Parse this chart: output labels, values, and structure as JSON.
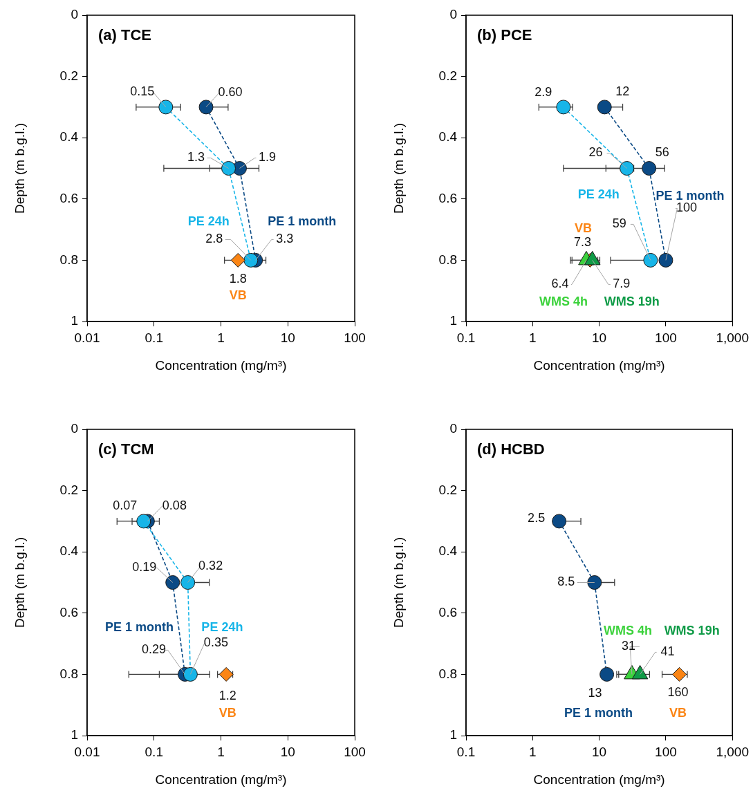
{
  "chart_data": [
    {
      "type": "scatter",
      "orientation": "horizontal",
      "title": "(a) TCE",
      "xlabel": "Concentration (mg/m³)",
      "ylabel": "Depth (m b.g.l.)",
      "log": "x",
      "grid": false,
      "xlim": [
        0.01,
        100
      ],
      "xticks": [
        0.01,
        0.1,
        1,
        10,
        100
      ],
      "ylim": [
        1,
        0
      ],
      "yticks": [
        0,
        0.2,
        0.4,
        0.6,
        0.8,
        1
      ],
      "series": [
        {
          "name": "PE 1 month",
          "type": "line",
          "marker": "circle",
          "line_style": "dashed",
          "color": "#0b4a85",
          "x": [
            0.3,
            0.5,
            0.8
          ],
          "values": [
            0.6,
            1.9,
            3.3
          ],
          "errors": [
            [
              0.6,
              1.28
            ],
            [
              0.68,
              3.7
            ],
            [
              3.3,
              4.7
            ]
          ],
          "value_labels": [
            "0.60",
            "1.9",
            "3.3"
          ]
        },
        {
          "name": "PE 24h",
          "type": "line",
          "marker": "circle",
          "line_style": "dashed",
          "color": "#17b5e8",
          "x": [
            0.3,
            0.5,
            0.8
          ],
          "values": [
            0.15,
            1.3,
            2.8
          ],
          "errors": [
            [
              0.054,
              0.25
            ],
            [
              0.14,
              1.3
            ],
            null
          ],
          "value_labels": [
            "0.15",
            "1.3",
            "2.8"
          ]
        },
        {
          "name": "VB",
          "type": "scatter",
          "marker": "diamond",
          "color": "#fb8515",
          "x": [
            0.8
          ],
          "values": [
            1.8
          ],
          "errors": [
            [
              1.13,
              1.8
            ]
          ],
          "value_labels": [
            "1.8"
          ]
        }
      ]
    },
    {
      "type": "scatter",
      "orientation": "horizontal",
      "title": "(b) PCE",
      "xlabel": "Concentration (mg/m³)",
      "ylabel": "Depth (m b.g.l.)",
      "log": "x",
      "grid": false,
      "xlim": [
        0.1,
        1000
      ],
      "xticks": [
        0.1,
        1,
        10,
        100,
        {
          "value": 1000,
          "label": "1,000"
        }
      ],
      "ylim": [
        1,
        0
      ],
      "yticks": [
        0,
        0.2,
        0.4,
        0.6,
        0.8,
        1
      ],
      "series": [
        {
          "name": "PE 1 month",
          "type": "line",
          "marker": "circle",
          "line_style": "dashed",
          "color": "#0b4a85",
          "x": [
            0.3,
            0.5,
            0.8
          ],
          "values": [
            12,
            56,
            100
          ],
          "errors": [
            [
              12,
              22.5
            ],
            [
              12.6,
              96
            ],
            [
              100,
              120
            ]
          ],
          "value_labels": [
            "12",
            "56",
            "100"
          ]
        },
        {
          "name": "PE 24h",
          "type": "line",
          "marker": "circle",
          "line_style": "dashed",
          "color": "#17b5e8",
          "x": [
            0.3,
            0.5,
            0.8
          ],
          "values": [
            2.9,
            26,
            59
          ],
          "errors": [
            [
              1.24,
              4.0
            ],
            [
              2.9,
              33
            ],
            [
              14.8,
              59
            ]
          ],
          "value_labels": [
            "2.9",
            "26",
            "59"
          ]
        },
        {
          "name": "VB",
          "type": "scatter",
          "marker": "diamond",
          "color": "#fb8515",
          "x": [
            0.8
          ],
          "values": [
            7.3
          ],
          "errors": [
            null
          ],
          "value_labels": [
            "7.3"
          ]
        },
        {
          "name": "WMS 4h",
          "type": "scatter",
          "marker": "triangle",
          "color": "#3cd23c",
          "x": [
            0.8
          ],
          "values": [
            6.4
          ],
          "errors": [
            [
              3.7,
              9.5
            ]
          ],
          "value_labels": [
            "6.4"
          ]
        },
        {
          "name": "WMS 19h",
          "type": "scatter",
          "marker": "triangle",
          "color": "#0f9b47",
          "x": [
            0.8
          ],
          "values": [
            7.9
          ],
          "errors": [
            [
              3.9,
              10.2
            ]
          ],
          "value_labels": [
            "7.9"
          ]
        }
      ]
    },
    {
      "type": "scatter",
      "orientation": "horizontal",
      "title": "(c) TCM",
      "xlabel": "Concentration (mg/m³)",
      "ylabel": "Depth (m b.g.l.)",
      "log": "x",
      "grid": false,
      "xlim": [
        0.01,
        100
      ],
      "xticks": [
        0.01,
        0.1,
        1,
        10,
        100
      ],
      "ylim": [
        1,
        0
      ],
      "yticks": [
        0,
        0.2,
        0.4,
        0.6,
        0.8,
        1
      ],
      "series": [
        {
          "name": "PE 1 month",
          "type": "line",
          "marker": "circle",
          "line_style": "dashed",
          "color": "#0b4a85",
          "x": [
            0.3,
            0.5,
            0.8
          ],
          "values": [
            0.08,
            0.19,
            0.29
          ],
          "errors": [
            [
              0.047,
              0.12
            ],
            null,
            [
              0.042,
              0.29
            ]
          ],
          "value_labels": [
            "0.08",
            "0.19",
            "0.29"
          ]
        },
        {
          "name": "PE 24h",
          "type": "line",
          "marker": "circle",
          "line_style": "dashed",
          "color": "#17b5e8",
          "x": [
            0.3,
            0.5,
            0.8
          ],
          "values": [
            0.07,
            0.32,
            0.35
          ],
          "errors": [
            [
              0.028,
              0.07
            ],
            [
              0.32,
              0.67
            ],
            [
              0.12,
              0.68
            ]
          ],
          "value_labels": [
            "0.07",
            "0.32",
            "0.35"
          ]
        },
        {
          "name": "VB",
          "type": "scatter",
          "marker": "diamond",
          "color": "#fb8515",
          "x": [
            0.8
          ],
          "values": [
            1.2
          ],
          "errors": [
            [
              0.89,
              1.5
            ]
          ],
          "value_labels": [
            "1.2"
          ]
        }
      ]
    },
    {
      "type": "scatter",
      "orientation": "horizontal",
      "title": "(d) HCBD",
      "xlabel": "Concentration (mg/m³)",
      "ylabel": "Depth (m b.g.l.)",
      "log": "x",
      "grid": false,
      "xlim": [
        0.1,
        1000
      ],
      "xticks": [
        0.1,
        1,
        10,
        100,
        {
          "value": 1000,
          "label": "1,000"
        }
      ],
      "ylim": [
        1,
        0
      ],
      "yticks": [
        0,
        0.2,
        0.4,
        0.6,
        0.8,
        1
      ],
      "series": [
        {
          "name": "PE 1 month",
          "type": "line",
          "marker": "circle",
          "line_style": "dashed",
          "color": "#0b4a85",
          "x": [
            0.3,
            0.5,
            0.8
          ],
          "values": [
            2.5,
            8.5,
            13
          ],
          "errors": [
            [
              2.5,
              5.3
            ],
            [
              8.5,
              17
            ],
            null
          ],
          "value_labels": [
            "2.5",
            "8.5",
            "13"
          ]
        },
        {
          "name": "VB",
          "type": "scatter",
          "marker": "diamond",
          "color": "#fb8515",
          "x": [
            0.8
          ],
          "values": [
            160
          ],
          "errors": [
            [
              88,
              210
            ]
          ],
          "value_labels": [
            "160"
          ]
        },
        {
          "name": "WMS 4h",
          "type": "scatter",
          "marker": "triangle",
          "color": "#3cd23c",
          "x": [
            0.8
          ],
          "values": [
            31
          ],
          "errors": [
            [
              18.3,
              31
            ]
          ],
          "value_labels": [
            "31"
          ]
        },
        {
          "name": "WMS 19h",
          "type": "scatter",
          "marker": "triangle",
          "color": "#0f9b47",
          "x": [
            0.8
          ],
          "values": [
            41
          ],
          "errors": [
            [
              19.6,
              57
            ]
          ],
          "value_labels": [
            "41"
          ]
        }
      ]
    }
  ]
}
